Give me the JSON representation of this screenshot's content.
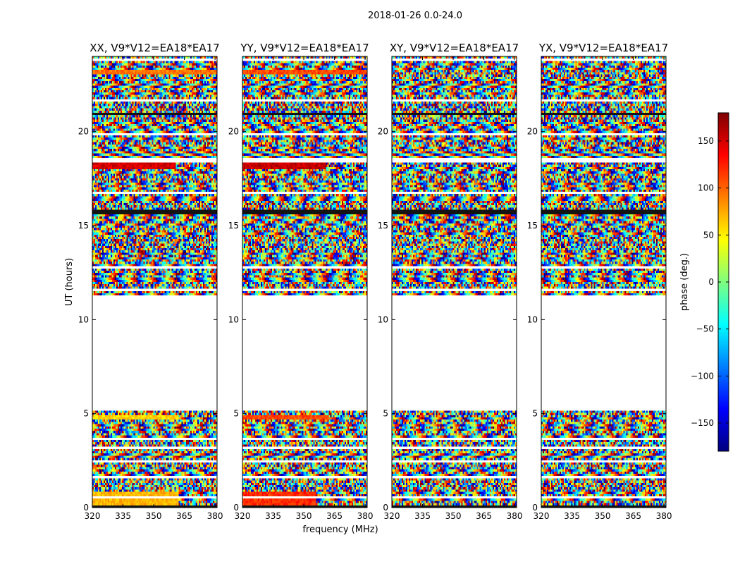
{
  "chart_data": {
    "type": "heatmap",
    "suptitle": "2018-01-26 0.0-24.0",
    "xlabel": "frequency (MHz)",
    "ylabel": "UT (hours)",
    "xlim": [
      320,
      381
    ],
    "ylim": [
      0,
      24
    ],
    "xticks": [
      320,
      335,
      350,
      365,
      380
    ],
    "yticks": [
      0,
      5,
      10,
      15,
      20
    ],
    "colorbar": {
      "label": "phase (deg.)",
      "range": [
        -180,
        180
      ],
      "ticks": [
        150,
        100,
        50,
        0,
        -50,
        -100,
        -150
      ],
      "tick_labels": [
        "150",
        "100",
        "50",
        "0",
        "−50",
        "−100",
        "−150"
      ],
      "colormap": [
        "#00007f",
        "#0000ff",
        "#007fff",
        "#00ffff",
        "#7fff7f",
        "#ffff00",
        "#ff7f00",
        "#ff0000",
        "#7f0000"
      ]
    },
    "panels": [
      {
        "title": "XX, V9*V12=EA18*EA17",
        "coherent": [
          {
            "t0": 18.05,
            "t1": 18.4,
            "f1": 361,
            "phase": 150
          },
          {
            "t0": 4.7,
            "t1": 4.95,
            "f1": 362,
            "phase": 60
          },
          {
            "t0": 0.0,
            "t1": 0.85,
            "f1": 362,
            "phase": 70
          },
          {
            "t0": 23.05,
            "t1": 23.3,
            "f1": 381,
            "phase": 95
          }
        ]
      },
      {
        "title": "YY, V9*V12=EA18*EA17",
        "coherent": [
          {
            "t0": 18.05,
            "t1": 18.4,
            "f1": 361,
            "phase": 155
          },
          {
            "t0": 4.7,
            "t1": 4.95,
            "f1": 362,
            "phase": 110
          },
          {
            "t0": 0.0,
            "t1": 0.85,
            "f1": 356,
            "phase": 120
          },
          {
            "t0": 23.05,
            "t1": 23.3,
            "f1": 381,
            "phase": 110
          }
        ]
      },
      {
        "title": "XY, V9*V12=EA18*EA17",
        "coherent": []
      },
      {
        "title": "YX, V9*V12=EA18*EA17",
        "coherent": []
      }
    ],
    "data_gaps_ut": [
      [
        5.2,
        11.3
      ]
    ]
  }
}
